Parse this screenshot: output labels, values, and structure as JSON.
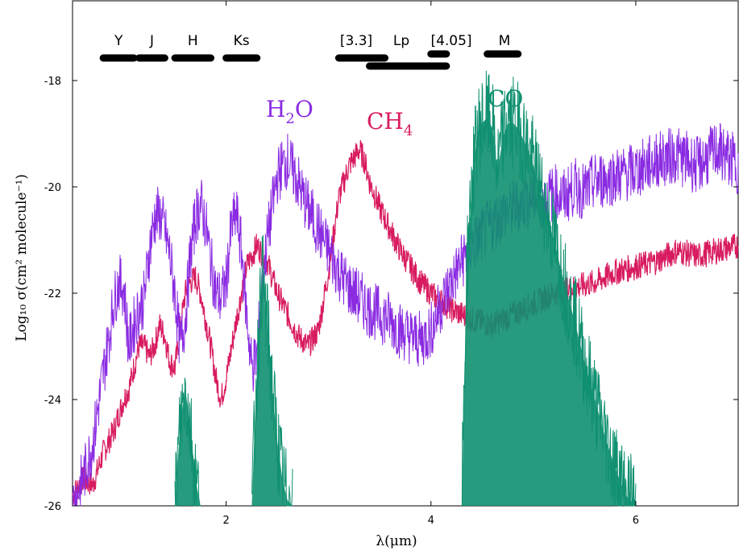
{
  "chart_data": {
    "type": "line",
    "title": "",
    "xlabel": "λ(μm)",
    "ylabel": "Log₁₀ σ(cm² molecule⁻¹)",
    "xlim": [
      0.5,
      7.0
    ],
    "ylim": [
      -26,
      -16.5
    ],
    "x_ticks": [
      2,
      4,
      6
    ],
    "x_tick_labels": [
      "2",
      "4",
      "6"
    ],
    "y_ticks": [
      -18,
      -20,
      -22,
      -24,
      -26
    ],
    "y_tick_labels": [
      "-18",
      "-20",
      "-22",
      "-24",
      "-26"
    ],
    "grid": false,
    "legend": "none",
    "series": [
      {
        "name": "H2O",
        "label_main": "H",
        "label_sub": "2",
        "label_tail": "O",
        "color": "#8a2be2",
        "x": [
          0.5,
          0.6,
          0.7,
          0.8,
          0.85,
          0.9,
          0.95,
          1.0,
          1.05,
          1.1,
          1.15,
          1.2,
          1.25,
          1.3,
          1.35,
          1.4,
          1.45,
          1.5,
          1.55,
          1.6,
          1.65,
          1.7,
          1.75,
          1.8,
          1.85,
          1.9,
          1.95,
          2.0,
          2.05,
          2.1,
          2.15,
          2.2,
          2.25,
          2.3,
          2.35,
          2.4,
          2.45,
          2.5,
          2.55,
          2.6,
          2.65,
          2.7,
          2.75,
          2.8,
          2.9,
          3.0,
          3.1,
          3.2,
          3.3,
          3.4,
          3.5,
          3.6,
          3.7,
          3.8,
          3.9,
          4.0,
          4.1,
          4.2,
          4.3,
          4.4,
          4.5,
          4.6,
          4.7,
          4.8,
          4.9,
          5.0,
          5.1,
          5.2,
          5.3,
          5.4,
          5.5,
          5.6,
          5.8,
          6.0,
          6.2,
          6.4,
          6.6,
          6.8,
          7.0
        ],
        "y": [
          -26,
          -25.5,
          -24.8,
          -23.5,
          -22.9,
          -22.2,
          -21.8,
          -21.9,
          -23.0,
          -22.6,
          -22.3,
          -22.1,
          -21.2,
          -20.6,
          -20.5,
          -20.8,
          -21.3,
          -22.0,
          -23.0,
          -22.5,
          -21.3,
          -20.6,
          -20.3,
          -20.7,
          -21.4,
          -22.0,
          -22.1,
          -21.8,
          -20.8,
          -20.5,
          -21.2,
          -22.4,
          -23.4,
          -23.2,
          -21.9,
          -21.0,
          -20.4,
          -19.8,
          -19.6,
          -19.5,
          -19.7,
          -19.9,
          -20.2,
          -20.4,
          -20.8,
          -21.2,
          -21.6,
          -21.9,
          -22.1,
          -22.3,
          -22.4,
          -22.5,
          -22.7,
          -22.8,
          -22.9,
          -22.7,
          -22.2,
          -21.8,
          -21.4,
          -21.1,
          -20.9,
          -20.7,
          -20.5,
          -20.4,
          -20.3,
          -20.2,
          -20.3,
          -20.1,
          -20.2,
          -20.0,
          -20.1,
          -19.9,
          -19.8,
          -19.7,
          -19.5,
          -19.4,
          -19.6,
          -19.3,
          -19.6
        ]
      },
      {
        "name": "CH4",
        "label_main": "CH",
        "label_sub": "4",
        "label_tail": "",
        "color": "#d81b60",
        "x": [
          0.5,
          0.6,
          0.7,
          0.8,
          0.9,
          1.0,
          1.05,
          1.1,
          1.15,
          1.2,
          1.25,
          1.3,
          1.35,
          1.4,
          1.45,
          1.5,
          1.55,
          1.6,
          1.65,
          1.7,
          1.75,
          1.8,
          1.85,
          1.9,
          1.95,
          2.0,
          2.1,
          2.2,
          2.3,
          2.4,
          2.5,
          2.6,
          2.7,
          2.8,
          2.9,
          3.0,
          3.1,
          3.2,
          3.3,
          3.35,
          3.4,
          3.5,
          3.6,
          3.7,
          3.8,
          3.9,
          4.0,
          4.2,
          4.4,
          4.6,
          4.8,
          5.0,
          5.2,
          5.4,
          5.6,
          5.8,
          6.0,
          6.2,
          6.4,
          6.6,
          6.8,
          7.0
        ],
        "y": [
          -25.8,
          -25.5,
          -25.6,
          -25.0,
          -24.6,
          -24.0,
          -23.8,
          -23.4,
          -23.0,
          -23.0,
          -23.2,
          -23.0,
          -22.6,
          -22.8,
          -23.3,
          -23.4,
          -22.7,
          -22.0,
          -21.8,
          -21.7,
          -22.0,
          -22.5,
          -23.0,
          -23.6,
          -24.0,
          -23.6,
          -22.5,
          -21.5,
          -21.1,
          -21.4,
          -22.0,
          -22.4,
          -22.8,
          -23.0,
          -22.7,
          -21.6,
          -20.2,
          -19.6,
          -19.3,
          -19.5,
          -19.9,
          -20.4,
          -20.8,
          -21.2,
          -21.5,
          -21.8,
          -22.0,
          -22.3,
          -22.5,
          -22.6,
          -22.4,
          -22.2,
          -22.0,
          -21.9,
          -21.8,
          -21.6,
          -21.5,
          -21.4,
          -21.2,
          -21.3,
          -21.2,
          -21.1
        ]
      },
      {
        "name": "CO",
        "label_main": "CO",
        "label_sub": "",
        "label_tail": "",
        "color": "#0f9070",
        "x": [
          1.5,
          1.55,
          1.6,
          1.65,
          1.7,
          1.75,
          2.25,
          2.3,
          2.35,
          2.4,
          2.45,
          2.5,
          2.55,
          2.6,
          2.65,
          4.3,
          4.35,
          4.4,
          4.45,
          4.5,
          4.55,
          4.6,
          4.65,
          4.7,
          4.75,
          4.8,
          4.85,
          4.9,
          4.95,
          5.0,
          5.1,
          5.2,
          5.3,
          5.4,
          5.5,
          5.6,
          5.7,
          5.8,
          5.9,
          6.0
        ],
        "y": [
          -26,
          -24.5,
          -23.8,
          -24.5,
          -25.5,
          -26,
          -26,
          -23.5,
          -21.6,
          -22.6,
          -23.8,
          -24.8,
          -25.5,
          -25.9,
          -26,
          -26,
          -21.5,
          -20.0,
          -19.0,
          -18.8,
          -18.7,
          -18.9,
          -19.7,
          -19.1,
          -18.8,
          -18.8,
          -18.9,
          -19.1,
          -19.3,
          -19.6,
          -20.3,
          -21.0,
          -21.8,
          -22.5,
          -23.3,
          -24.0,
          -24.7,
          -25.3,
          -25.8,
          -26
        ]
      }
    ],
    "bands": [
      {
        "label": "Y",
        "x_start": 0.8,
        "x_end": 1.1
      },
      {
        "label": "J",
        "x_start": 1.15,
        "x_end": 1.4
      },
      {
        "label": "H",
        "x_start": 1.5,
        "x_end": 1.85
      },
      {
        "label": "Ks",
        "x_start": 2.0,
        "x_end": 2.3
      },
      {
        "label": "[3.3]",
        "x_start": 3.1,
        "x_end": 3.55
      },
      {
        "label": "Lp",
        "x_start": 3.4,
        "x_end": 4.15
      },
      {
        "label": "[4.05]",
        "x_start": 4.0,
        "x_end": 4.15
      },
      {
        "label": "M",
        "x_start": 4.55,
        "x_end": 4.85
      }
    ]
  }
}
